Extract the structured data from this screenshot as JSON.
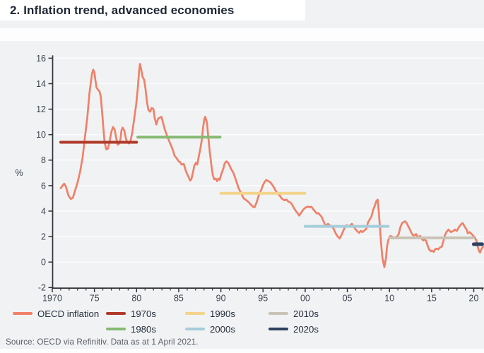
{
  "header": {
    "title": "2. Inflation trend, advanced economies"
  },
  "source": {
    "text": "Source: OECD via Refinitiv. Data as at 1 April 2021."
  },
  "colors": {
    "background": "#f1f2f4",
    "panel_white": "#ffffff",
    "gridline": "#fbfcfd",
    "axis": "#303338",
    "tick_label": "#3a434f",
    "title_text": "#1d2734",
    "legend_text": "#242f3d",
    "source_text": "#585e66",
    "oecd_line": "#ef8168",
    "decade_1970s": "#b03a2b",
    "decade_1980s": "#87b972",
    "decade_1990s": "#f4d38b",
    "decade_2000s": "#a6cdda",
    "decade_2010s": "#c9c3b6",
    "decade_2020s": "#2e4161"
  },
  "chart_data": {
    "type": "line",
    "title": "2. Inflation trend, advanced economies",
    "xlabel": "",
    "ylabel": "%",
    "xlim": [
      1970,
      2021.3
    ],
    "ylim": [
      -2,
      16
    ],
    "grid": "horizontal",
    "legend_position": "bottom",
    "y_ticks": [
      -2,
      0,
      2,
      4,
      6,
      8,
      10,
      12,
      14,
      16
    ],
    "x_ticks": [
      {
        "year": 1970,
        "label": "1970"
      },
      {
        "year": 1975,
        "label": "75"
      },
      {
        "year": 1980,
        "label": "80"
      },
      {
        "year": 1985,
        "label": "85"
      },
      {
        "year": 1990,
        "label": "90"
      },
      {
        "year": 1995,
        "label": "95"
      },
      {
        "year": 2000,
        "label": "00"
      },
      {
        "year": 2005,
        "label": "05"
      },
      {
        "year": 2010,
        "label": "10"
      },
      {
        "year": 2015,
        "label": "15"
      },
      {
        "year": 2020,
        "label": "20"
      }
    ],
    "series": [
      {
        "name": "OECD inflation",
        "color": "#ef8168",
        "points": [
          [
            1971.0,
            5.8
          ],
          [
            1971.4,
            6.15
          ],
          [
            1971.6,
            5.95
          ],
          [
            1971.9,
            5.25
          ],
          [
            1972.2,
            4.95
          ],
          [
            1972.45,
            5.05
          ],
          [
            1972.7,
            5.6
          ],
          [
            1973.0,
            6.25
          ],
          [
            1973.3,
            7.1
          ],
          [
            1973.6,
            8.2
          ],
          [
            1973.85,
            9.65
          ],
          [
            1974.15,
            11.3
          ],
          [
            1974.4,
            13.2
          ],
          [
            1974.7,
            14.75
          ],
          [
            1974.85,
            15.1
          ],
          [
            1975.0,
            14.85
          ],
          [
            1975.1,
            14.35
          ],
          [
            1975.25,
            13.7
          ],
          [
            1975.45,
            13.5
          ],
          [
            1975.6,
            13.4
          ],
          [
            1975.75,
            13.0
          ],
          [
            1975.9,
            11.85
          ],
          [
            1976.05,
            10.6
          ],
          [
            1976.2,
            9.4
          ],
          [
            1976.4,
            8.85
          ],
          [
            1976.6,
            8.9
          ],
          [
            1976.8,
            9.45
          ],
          [
            1977.0,
            10.2
          ],
          [
            1977.2,
            10.6
          ],
          [
            1977.4,
            10.4
          ],
          [
            1977.55,
            9.85
          ],
          [
            1977.75,
            9.2
          ],
          [
            1977.95,
            9.3
          ],
          [
            1978.1,
            9.65
          ],
          [
            1978.2,
            10.3
          ],
          [
            1978.35,
            10.55
          ],
          [
            1978.55,
            10.3
          ],
          [
            1978.75,
            9.65
          ],
          [
            1978.9,
            9.4
          ],
          [
            1979.1,
            9.3
          ],
          [
            1979.3,
            9.55
          ],
          [
            1979.5,
            10.2
          ],
          [
            1979.7,
            11.15
          ],
          [
            1979.95,
            12.35
          ],
          [
            1980.15,
            13.7
          ],
          [
            1980.3,
            15.0
          ],
          [
            1980.4,
            15.55
          ],
          [
            1980.55,
            15.1
          ],
          [
            1980.7,
            14.55
          ],
          [
            1980.9,
            14.3
          ],
          [
            1981.05,
            13.65
          ],
          [
            1981.25,
            12.5
          ],
          [
            1981.4,
            11.95
          ],
          [
            1981.6,
            11.8
          ],
          [
            1981.8,
            12.1
          ],
          [
            1982.0,
            12.0
          ],
          [
            1982.15,
            11.3
          ],
          [
            1982.35,
            10.8
          ],
          [
            1982.55,
            11.25
          ],
          [
            1982.95,
            11.4
          ],
          [
            1983.15,
            10.9
          ],
          [
            1983.35,
            10.4
          ],
          [
            1983.65,
            9.85
          ],
          [
            1983.9,
            9.45
          ],
          [
            1984.15,
            9.05
          ],
          [
            1984.35,
            8.7
          ],
          [
            1984.5,
            8.35
          ],
          [
            1984.75,
            8.15
          ],
          [
            1985.0,
            7.9
          ],
          [
            1985.15,
            7.85
          ],
          [
            1985.35,
            7.65
          ],
          [
            1985.6,
            7.7
          ],
          [
            1985.75,
            7.35
          ],
          [
            1985.9,
            7.05
          ],
          [
            1986.15,
            6.7
          ],
          [
            1986.35,
            6.4
          ],
          [
            1986.5,
            6.5
          ],
          [
            1986.7,
            7.05
          ],
          [
            1986.85,
            7.55
          ],
          [
            1987.05,
            7.8
          ],
          [
            1987.2,
            7.65
          ],
          [
            1987.35,
            8.2
          ],
          [
            1987.55,
            8.85
          ],
          [
            1987.75,
            9.65
          ],
          [
            1987.9,
            10.6
          ],
          [
            1988.05,
            11.25
          ],
          [
            1988.15,
            11.4
          ],
          [
            1988.35,
            10.95
          ],
          [
            1988.5,
            9.85
          ],
          [
            1988.7,
            8.55
          ],
          [
            1988.9,
            7.45
          ],
          [
            1989.05,
            6.8
          ],
          [
            1989.2,
            6.5
          ],
          [
            1989.4,
            6.55
          ],
          [
            1989.55,
            6.35
          ],
          [
            1989.7,
            6.55
          ],
          [
            1989.85,
            6.45
          ],
          [
            1990.05,
            6.9
          ],
          [
            1990.3,
            7.35
          ],
          [
            1990.45,
            7.75
          ],
          [
            1990.65,
            7.9
          ],
          [
            1990.85,
            7.8
          ],
          [
            1991.05,
            7.55
          ],
          [
            1991.25,
            7.25
          ],
          [
            1991.45,
            7.05
          ],
          [
            1991.7,
            6.6
          ],
          [
            1991.9,
            6.2
          ],
          [
            1992.1,
            5.8
          ],
          [
            1992.4,
            5.4
          ],
          [
            1992.7,
            5.0
          ],
          [
            1993.0,
            4.86
          ],
          [
            1993.3,
            4.7
          ],
          [
            1993.55,
            4.5
          ],
          [
            1993.8,
            4.35
          ],
          [
            1994.0,
            4.3
          ],
          [
            1994.25,
            4.7
          ],
          [
            1994.5,
            5.25
          ],
          [
            1994.75,
            5.6
          ],
          [
            1995.0,
            6.05
          ],
          [
            1995.2,
            6.3
          ],
          [
            1995.4,
            6.45
          ],
          [
            1995.6,
            6.35
          ],
          [
            1995.8,
            6.3
          ],
          [
            1996.0,
            6.15
          ],
          [
            1996.3,
            5.85
          ],
          [
            1996.5,
            5.6
          ],
          [
            1996.8,
            5.35
          ],
          [
            1997.0,
            5.2
          ],
          [
            1997.2,
            5.0
          ],
          [
            1997.4,
            4.9
          ],
          [
            1997.6,
            4.85
          ],
          [
            1997.8,
            4.9
          ],
          [
            1998.0,
            4.75
          ],
          [
            1998.2,
            4.7
          ],
          [
            1998.35,
            4.6
          ],
          [
            1998.5,
            4.45
          ],
          [
            1998.7,
            4.2
          ],
          [
            1998.95,
            3.95
          ],
          [
            1999.15,
            3.8
          ],
          [
            1999.3,
            3.65
          ],
          [
            1999.5,
            3.85
          ],
          [
            1999.7,
            4.05
          ],
          [
            1999.9,
            4.2
          ],
          [
            2000.1,
            4.3
          ],
          [
            2000.35,
            4.35
          ],
          [
            2000.55,
            4.3
          ],
          [
            2000.75,
            4.35
          ],
          [
            2000.95,
            4.15
          ],
          [
            2001.2,
            3.95
          ],
          [
            2001.4,
            3.8
          ],
          [
            2001.55,
            3.85
          ],
          [
            2001.75,
            3.7
          ],
          [
            2001.95,
            3.55
          ],
          [
            2002.15,
            3.25
          ],
          [
            2002.35,
            2.95
          ],
          [
            2002.55,
            2.85
          ],
          [
            2002.7,
            3.0
          ],
          [
            2002.9,
            2.9
          ],
          [
            2003.15,
            2.8
          ],
          [
            2003.35,
            2.65
          ],
          [
            2003.55,
            2.35
          ],
          [
            2003.75,
            2.1
          ],
          [
            2003.95,
            1.95
          ],
          [
            2004.1,
            1.85
          ],
          [
            2004.3,
            2.1
          ],
          [
            2004.55,
            2.5
          ],
          [
            2004.75,
            2.8
          ],
          [
            2004.95,
            2.9
          ],
          [
            2005.15,
            2.8
          ],
          [
            2005.35,
            2.9
          ],
          [
            2005.55,
            3.0
          ],
          [
            2005.75,
            2.8
          ],
          [
            2006.0,
            2.55
          ],
          [
            2006.2,
            2.4
          ],
          [
            2006.4,
            2.3
          ],
          [
            2006.6,
            2.45
          ],
          [
            2006.8,
            2.35
          ],
          [
            2007.05,
            2.5
          ],
          [
            2007.25,
            2.6
          ],
          [
            2007.45,
            3.1
          ],
          [
            2007.7,
            3.4
          ],
          [
            2007.85,
            3.55
          ],
          [
            2008.05,
            4.05
          ],
          [
            2008.3,
            4.5
          ],
          [
            2008.45,
            4.8
          ],
          [
            2008.6,
            4.9
          ],
          [
            2008.7,
            4.2
          ],
          [
            2008.85,
            2.9
          ],
          [
            2009.0,
            1.5
          ],
          [
            2009.15,
            0.4
          ],
          [
            2009.3,
            -0.1
          ],
          [
            2009.4,
            -0.4
          ],
          [
            2009.6,
            0.35
          ],
          [
            2009.7,
            1.15
          ],
          [
            2009.85,
            1.7
          ],
          [
            2010.0,
            1.95
          ],
          [
            2010.1,
            2.05
          ],
          [
            2010.3,
            2.0
          ],
          [
            2010.45,
            1.85
          ],
          [
            2010.7,
            1.95
          ],
          [
            2010.9,
            2.0
          ],
          [
            2011.1,
            2.2
          ],
          [
            2011.3,
            2.75
          ],
          [
            2011.5,
            3.05
          ],
          [
            2011.7,
            3.15
          ],
          [
            2011.85,
            3.2
          ],
          [
            2012.05,
            3.05
          ],
          [
            2012.2,
            2.85
          ],
          [
            2012.4,
            2.6
          ],
          [
            2012.6,
            2.3
          ],
          [
            2012.8,
            2.1
          ],
          [
            2013.0,
            2.1
          ],
          [
            2013.15,
            2.2
          ],
          [
            2013.3,
            2.05
          ],
          [
            2013.5,
            1.95
          ],
          [
            2013.65,
            2.05
          ],
          [
            2013.8,
            1.85
          ],
          [
            2014.0,
            1.7
          ],
          [
            2014.2,
            1.8
          ],
          [
            2014.35,
            1.65
          ],
          [
            2014.55,
            1.25
          ],
          [
            2014.7,
            1.0
          ],
          [
            2014.9,
            0.85
          ],
          [
            2015.05,
            0.9
          ],
          [
            2015.25,
            0.8
          ],
          [
            2015.4,
            1.0
          ],
          [
            2015.6,
            1.05
          ],
          [
            2015.8,
            1.0
          ],
          [
            2016.0,
            1.15
          ],
          [
            2016.2,
            1.2
          ],
          [
            2016.4,
            1.65
          ],
          [
            2016.55,
            2.05
          ],
          [
            2016.75,
            2.35
          ],
          [
            2017.0,
            2.55
          ],
          [
            2017.3,
            2.35
          ],
          [
            2017.6,
            2.45
          ],
          [
            2017.75,
            2.55
          ],
          [
            2018.0,
            2.45
          ],
          [
            2018.25,
            2.75
          ],
          [
            2018.55,
            3.0
          ],
          [
            2018.7,
            3.05
          ],
          [
            2018.95,
            2.75
          ],
          [
            2019.15,
            2.55
          ],
          [
            2019.3,
            2.25
          ],
          [
            2019.5,
            2.35
          ],
          [
            2019.75,
            2.2
          ],
          [
            2019.95,
            2.05
          ],
          [
            2020.1,
            1.95
          ],
          [
            2020.3,
            1.7
          ],
          [
            2020.45,
            1.25
          ],
          [
            2020.6,
            0.9
          ],
          [
            2020.75,
            0.75
          ],
          [
            2020.9,
            1.0
          ],
          [
            2021.1,
            1.2
          ]
        ]
      }
    ],
    "decade_averages": [
      {
        "name": "1970s",
        "color": "#b03a2b",
        "value": 9.4,
        "start": 1971.0,
        "end": 1980.0,
        "thickness": 4
      },
      {
        "name": "1980s",
        "color": "#87b972",
        "value": 9.8,
        "start": 1980.15,
        "end": 1989.9,
        "thickness": 4
      },
      {
        "name": "1990s",
        "color": "#f4d38b",
        "value": 5.4,
        "start": 1990.0,
        "end": 1999.95,
        "thickness": 4
      },
      {
        "name": "2000s",
        "color": "#a6cdda",
        "value": 2.8,
        "start": 2000.0,
        "end": 2009.85,
        "thickness": 4
      },
      {
        "name": "2010s",
        "color": "#c9c3b6",
        "value": 1.9,
        "start": 2010.0,
        "end": 2019.95,
        "thickness": 4
      },
      {
        "name": "2020s",
        "color": "#2e4161",
        "value": 1.4,
        "start": 2020.0,
        "end": 2021.0,
        "thickness": 5
      }
    ],
    "legend": [
      {
        "label": "OECD inflation",
        "color": "#ef8168",
        "row": 0,
        "col": 0
      },
      {
        "label": "1970s",
        "color": "#b03a2b",
        "row": 0,
        "col": 1
      },
      {
        "label": "1980s",
        "color": "#87b972",
        "row": 1,
        "col": 1
      },
      {
        "label": "1990s",
        "color": "#f4d38b",
        "row": 0,
        "col": 2
      },
      {
        "label": "2000s",
        "color": "#a6cdda",
        "row": 1,
        "col": 2
      },
      {
        "label": "2010s",
        "color": "#c9c3b6",
        "row": 0,
        "col": 3
      },
      {
        "label": "2020s",
        "color": "#2e4161",
        "row": 1,
        "col": 3
      }
    ]
  }
}
